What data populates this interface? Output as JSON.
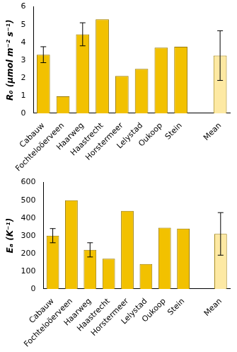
{
  "chart_data": [
    {
      "type": "bar",
      "ylabel": "R₀ (μmol m⁻² s⁻¹)",
      "categories": [
        "Cabauw",
        "Fochteloöerveen",
        "Haarweg",
        "Haastrecht",
        "Horstermeer",
        "Lelystad",
        "Oukoop",
        "Stein",
        null,
        "Mean"
      ],
      "values": [
        3.3,
        0.95,
        4.45,
        5.3,
        2.1,
        2.5,
        3.7,
        3.75,
        null,
        3.25
      ],
      "errors": [
        0.45,
        null,
        0.65,
        null,
        null,
        null,
        null,
        null,
        null,
        1.4
      ],
      "colors": [
        "#f2c100",
        "#f2c100",
        "#f2c100",
        "#f2c100",
        "#f2c100",
        "#f2c100",
        "#f2c100",
        "#f2c100",
        "#f2c100",
        "#fde9a3"
      ],
      "ylim": [
        0,
        6
      ],
      "yticks": [
        0,
        1,
        2,
        3,
        4,
        5,
        6
      ],
      "grid": false
    },
    {
      "type": "bar",
      "ylabel": "Eₐ (K⁻¹)",
      "categories": [
        "Cabauw",
        "Fochteloöerveen",
        "Haarweg",
        "Haastrecht",
        "Horstermeer",
        "Lelystad",
        "Oukoop",
        "Stein",
        null,
        "Mean"
      ],
      "values": [
        300,
        500,
        220,
        170,
        440,
        140,
        345,
        340,
        null,
        310
      ],
      "errors": [
        40,
        null,
        40,
        null,
        null,
        null,
        null,
        null,
        null,
        120
      ],
      "colors": [
        "#f2c100",
        "#f2c100",
        "#f2c100",
        "#f2c100",
        "#f2c100",
        "#f2c100",
        "#f2c100",
        "#f2c100",
        "#f2c100",
        "#fde9a3"
      ],
      "ylim": [
        0,
        600
      ],
      "yticks": [
        0,
        100,
        200,
        300,
        400,
        500,
        600
      ],
      "grid": false
    }
  ]
}
